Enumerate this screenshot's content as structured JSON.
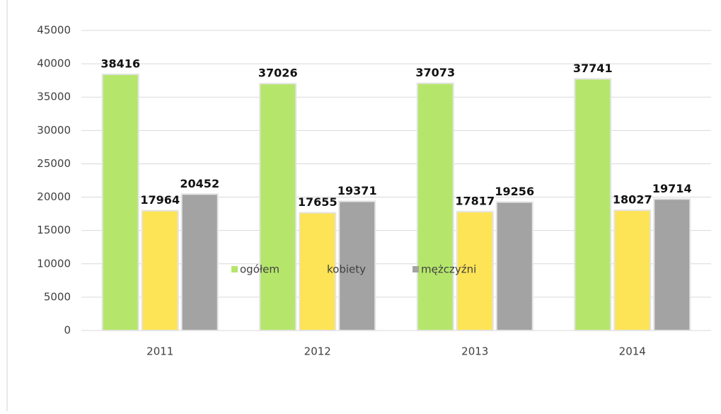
{
  "chart_data": {
    "type": "bar",
    "categories": [
      "2011",
      "2012",
      "2013",
      "2014"
    ],
    "series": [
      {
        "name": "ogółem",
        "color": "#b5e66b",
        "values": [
          38416,
          37026,
          37073,
          37741
        ]
      },
      {
        "name": "kobiety",
        "color": "#fde356",
        "values": [
          17964,
          17655,
          17817,
          18027
        ]
      },
      {
        "name": "mężczyźni",
        "color": "#a3a3a3",
        "values": [
          20452,
          19371,
          19256,
          19714
        ]
      }
    ],
    "ylim": [
      0,
      45000
    ],
    "yticks": [
      0,
      5000,
      10000,
      15000,
      20000,
      25000,
      30000,
      35000,
      40000,
      45000
    ],
    "grid": true,
    "legend": "bottom"
  }
}
